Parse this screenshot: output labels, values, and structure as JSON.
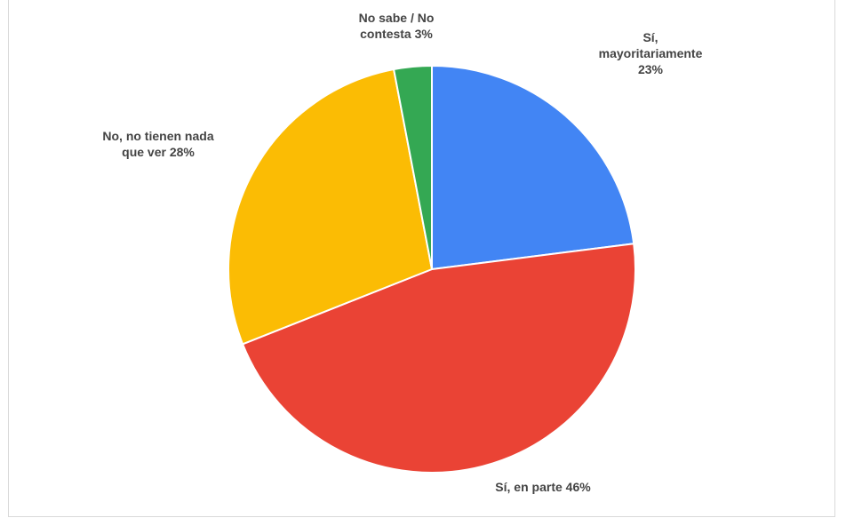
{
  "chart_data": {
    "type": "pie",
    "title": "",
    "slices": [
      {
        "label": "Sí, mayoritariamente",
        "value": 23,
        "percent_label": "23%",
        "color": "#4285F4"
      },
      {
        "label": "Sí, en parte",
        "value": 46,
        "percent_label": "46%",
        "color": "#EA4335"
      },
      {
        "label": "No, no tienen nada que ver",
        "value": 28,
        "percent_label": "28%",
        "color": "#FBBC04"
      },
      {
        "label": "No sabe / No contesta",
        "value": 3,
        "percent_label": "3%",
        "color": "#34A853"
      }
    ],
    "label_lines": [
      [
        "Sí,",
        "mayoritariamente",
        "23%"
      ],
      [
        "Sí, en parte 46%"
      ],
      [
        "No, no tienen nada",
        "que ver 28%"
      ],
      [
        "No sabe / No",
        "contesta 3%"
      ]
    ],
    "start_angle": "top",
    "direction": "clockwise",
    "slice_border_color": "#ffffff"
  }
}
